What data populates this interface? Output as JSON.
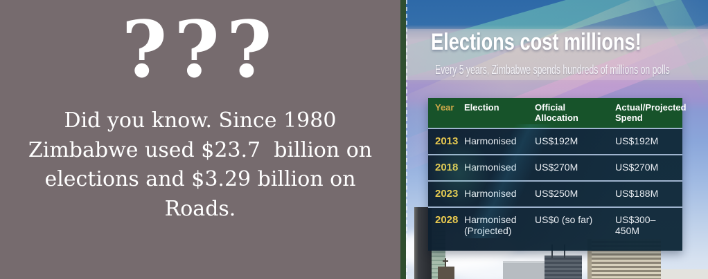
{
  "left_panel": {
    "question_marks": "???",
    "fact_text": "Did you know. Since 1980 Zimbabwe used $23.7  billion on elections and $3.29 billion on Roads."
  },
  "right_panel": {
    "title": "Elections cost millions!",
    "subtitle": "Every 5 years, Zimbabwe spends hundreds of millions on polls",
    "table": {
      "columns": [
        "Year",
        "Election",
        "Official Allocation",
        "Actual/Projected Spend"
      ],
      "rows": [
        {
          "year": "2013",
          "election": "Harmonised",
          "allocation": "US$192M",
          "spend": "US$192M"
        },
        {
          "year": "2018",
          "election": "Harmonised",
          "allocation": "US$270M",
          "spend": "US$270M"
        },
        {
          "year": "2023",
          "election": "Harmonised",
          "allocation": "US$250M",
          "spend": "US$188M"
        },
        {
          "year": "2028",
          "election": "Harmonised (Projected)",
          "allocation": "US$0 (so far)",
          "spend": "US$300–450M"
        }
      ]
    }
  },
  "colors": {
    "left_background": "#766b6e",
    "divider_green": "#2f4e2f",
    "table_header_green": "#17532a",
    "gold_accent": "#e9c94f",
    "row_navy": "#0d1f30",
    "text_white": "#ffffff"
  },
  "chart_data": {
    "type": "table",
    "title": "Elections cost millions!",
    "subtitle": "Every 5 years, Zimbabwe spends hundreds of millions on polls",
    "columns": [
      "Year",
      "Election",
      "Official Allocation",
      "Actual/Projected Spend"
    ],
    "rows": [
      [
        "2013",
        "Harmonised",
        "US$192M",
        "US$192M"
      ],
      [
        "2018",
        "Harmonised",
        "US$270M",
        "US$270M"
      ],
      [
        "2023",
        "Harmonised",
        "US$250M",
        "US$188M"
      ],
      [
        "2028",
        "Harmonised (Projected)",
        "US$0 (so far)",
        "US$300–450M"
      ]
    ],
    "notes_left_card": "Did you know. Since 1980 Zimbabwe used $23.7 billion on elections and $3.29 billion on Roads."
  }
}
